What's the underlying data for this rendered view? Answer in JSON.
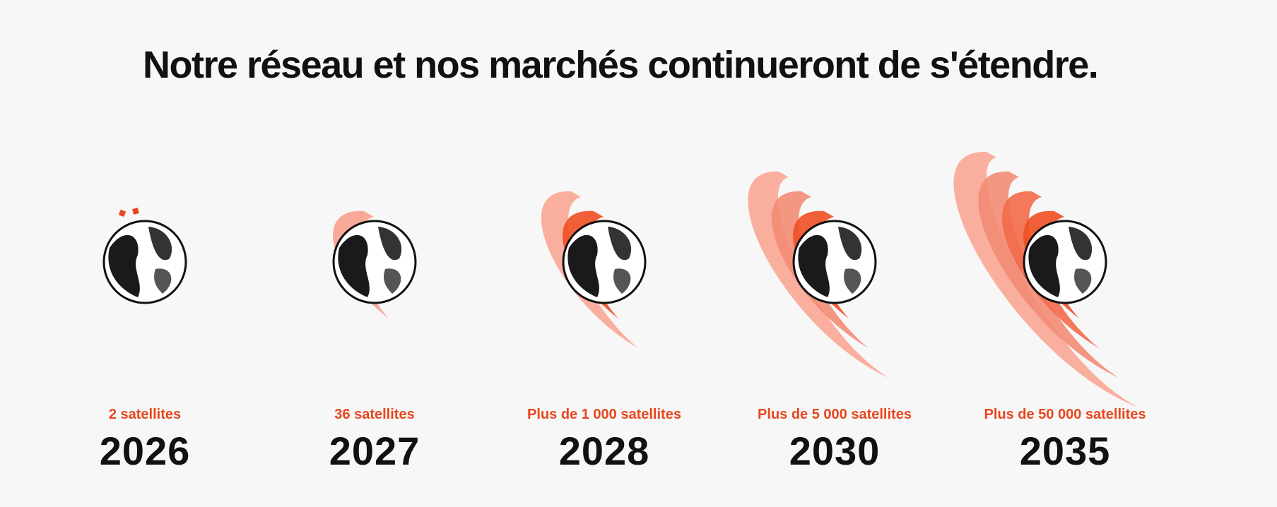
{
  "header": {
    "title": "Notre réseau et nos marchés continueront de s'étendre."
  },
  "milestones": [
    {
      "label": "2 satellites",
      "year": "2026"
    },
    {
      "label": "36 satellites",
      "year": "2027"
    },
    {
      "label": "Plus de 1 000 satellites",
      "year": "2028"
    },
    {
      "label": "Plus de 5 000 satellites",
      "year": "2030"
    },
    {
      "label": "Plus de 50 000 satellites",
      "year": "2035"
    }
  ]
}
